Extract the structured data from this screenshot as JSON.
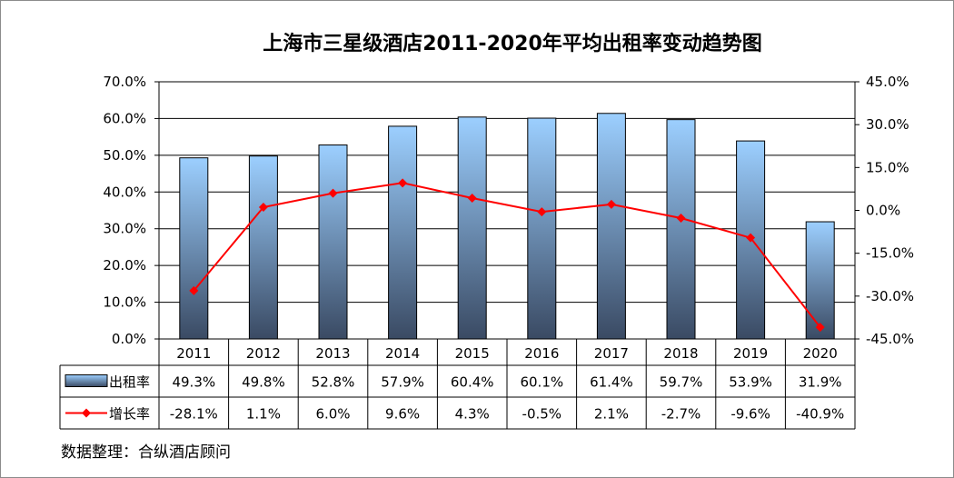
{
  "chart_data": {
    "type": "bar+line",
    "title": "上海市三星级酒店2011-2020年平均出租率变动趋势图",
    "categories": [
      "2011",
      "2012",
      "2013",
      "2014",
      "2015",
      "2016",
      "2017",
      "2018",
      "2019",
      "2020"
    ],
    "series": [
      {
        "name": "出租率",
        "type": "bar",
        "axis": "left",
        "values": [
          49.3,
          49.8,
          52.8,
          57.9,
          60.4,
          60.1,
          61.4,
          59.7,
          53.9,
          31.9
        ],
        "labels": [
          "49.3%",
          "49.8%",
          "52.8%",
          "57.9%",
          "60.4%",
          "60.1%",
          "61.4%",
          "59.7%",
          "53.9%",
          "31.9%"
        ]
      },
      {
        "name": "增长率",
        "type": "line",
        "axis": "right",
        "values": [
          -28.1,
          1.1,
          6.0,
          9.6,
          4.3,
          -0.5,
          2.1,
          -2.7,
          -9.6,
          -40.9
        ],
        "labels": [
          "-28.1%",
          "1.1%",
          "6.0%",
          "9.6%",
          "4.3%",
          "-0.5%",
          "2.1%",
          "-2.7%",
          "-9.6%",
          "-40.9%"
        ],
        "color": "#ff0000"
      }
    ],
    "y_left": {
      "range": [
        0,
        70
      ],
      "ticks": [
        0,
        10,
        20,
        30,
        40,
        50,
        60,
        70
      ],
      "tick_labels": [
        "0.0%",
        "10.0%",
        "20.0%",
        "30.0%",
        "40.0%",
        "50.0%",
        "60.0%",
        "70.0%"
      ]
    },
    "y_right": {
      "range": [
        -45,
        45
      ],
      "ticks": [
        -45,
        -30,
        -15,
        0,
        15,
        30,
        45
      ],
      "tick_labels": [
        "-45.0%",
        "-30.0%",
        "-15.0%",
        "0.0%",
        "15.0%",
        "30.0%",
        "45.0%"
      ]
    },
    "grid": true,
    "legend": "data-table-left",
    "source": "数据整理：合纵酒店顾问",
    "colors": {
      "bar_top": "#9ccfff",
      "bar_bottom": "#3a4a63",
      "line": "#ff0000"
    }
  }
}
